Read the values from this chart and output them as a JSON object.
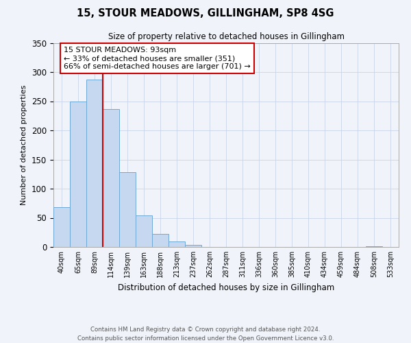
{
  "title": "15, STOUR MEADOWS, GILLINGHAM, SP8 4SG",
  "subtitle": "Size of property relative to detached houses in Gillingham",
  "xlabel": "Distribution of detached houses by size in Gillingham",
  "ylabel": "Number of detached properties",
  "bin_labels": [
    "40sqm",
    "65sqm",
    "89sqm",
    "114sqm",
    "139sqm",
    "163sqm",
    "188sqm",
    "213sqm",
    "237sqm",
    "262sqm",
    "287sqm",
    "311sqm",
    "336sqm",
    "360sqm",
    "385sqm",
    "410sqm",
    "434sqm",
    "459sqm",
    "484sqm",
    "508sqm",
    "533sqm"
  ],
  "bar_values": [
    68,
    250,
    287,
    236,
    128,
    54,
    22,
    10,
    4,
    0,
    0,
    0,
    0,
    0,
    0,
    0,
    0,
    0,
    0,
    1,
    0
  ],
  "bar_color": "#c5d8f0",
  "bar_edge_color": "#6fa8d6",
  "vline_x": 2.5,
  "vline_color": "#cc0000",
  "annotation_title": "15 STOUR MEADOWS: 93sqm",
  "annotation_line1": "← 33% of detached houses are smaller (351)",
  "annotation_line2": "66% of semi-detached houses are larger (701) →",
  "annotation_box_color": "#ffffff",
  "annotation_box_edge": "#cc0000",
  "ylim": [
    0,
    350
  ],
  "yticks": [
    0,
    50,
    100,
    150,
    200,
    250,
    300,
    350
  ],
  "footer1": "Contains HM Land Registry data © Crown copyright and database right 2024.",
  "footer2": "Contains public sector information licensed under the Open Government Licence v3.0.",
  "bg_color": "#f0f4fa"
}
